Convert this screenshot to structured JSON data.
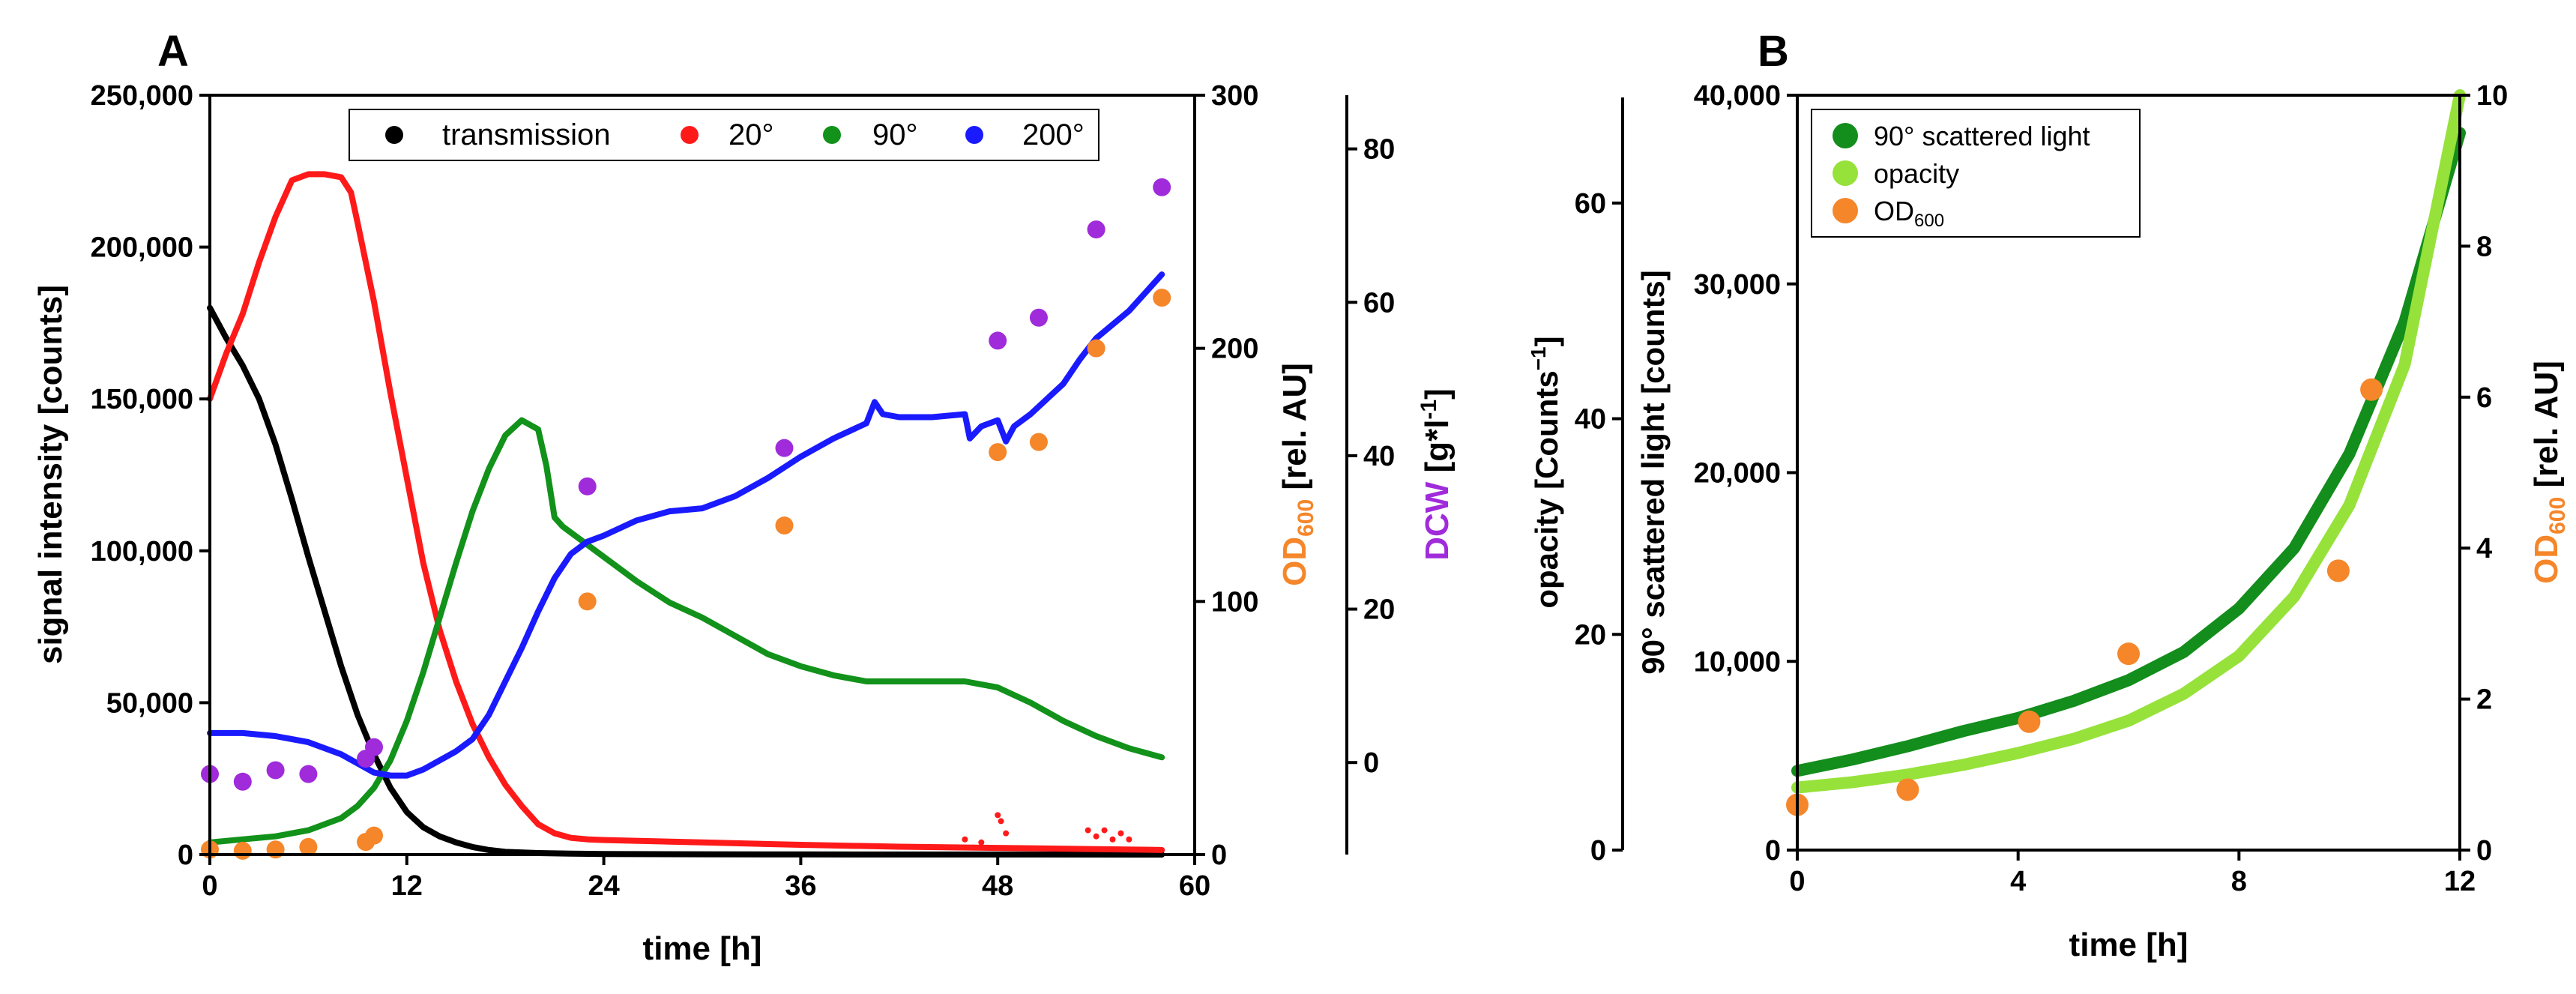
{
  "colors": {
    "black": "#000000",
    "red": "#ff1a1a",
    "green": "#12921a",
    "blue": "#1a1aff",
    "orange": "#f5862a",
    "purple": "#a02bdb",
    "darkgreen": "#138d1b",
    "lightgreen": "#96e23a"
  },
  "chart_data": [
    {
      "panel": "A",
      "type": "line",
      "xlabel": "time [h]",
      "ylabel": "signal intensity [counts]",
      "y2label_main": "OD",
      "y2label_sub": "600",
      "y2label_unit": " [rel. AU]",
      "y3label_main": "DCW",
      "y3label_unit": " [g*l",
      "y3label_sup": "-1",
      "y3label_end": "]",
      "xlim": [
        0,
        60
      ],
      "ylim": [
        0,
        250000
      ],
      "y2lim": [
        0,
        300
      ],
      "y3lim": [
        -12,
        87
      ],
      "xticks": [
        0,
        12,
        24,
        36,
        48,
        60
      ],
      "xtick_labels": [
        "0",
        "12",
        "24",
        "36",
        "48",
        "60"
      ],
      "yticks": [
        0,
        50000,
        100000,
        150000,
        200000,
        250000
      ],
      "ytick_labels": [
        "0",
        "50,000",
        "100,000",
        "150,000",
        "200,000",
        "250,000"
      ],
      "y2ticks": [
        0,
        100,
        200,
        300
      ],
      "y2tick_labels": [
        "0",
        "100",
        "200",
        "300"
      ],
      "y3ticks": [
        0,
        20,
        40,
        60,
        80
      ],
      "y3tick_labels": [
        "0",
        "20",
        "40",
        "60",
        "80"
      ],
      "legend": [
        {
          "name": "transmission",
          "color": "black"
        },
        {
          "name": "20°",
          "color": "red"
        },
        {
          "name": "90°",
          "color": "green"
        },
        {
          "name": "200°",
          "color": "blue"
        }
      ],
      "series": [
        {
          "name": "transmission",
          "color": "black",
          "x": [
            0,
            1,
            2,
            3,
            4,
            5,
            6,
            7,
            8,
            9,
            10,
            11,
            12,
            13,
            14,
            15,
            16,
            17,
            18,
            20,
            22,
            24,
            30,
            36,
            48,
            58
          ],
          "y": [
            180000,
            170000,
            161000,
            150000,
            135000,
            117000,
            98000,
            80000,
            62000,
            46000,
            33000,
            22000,
            14000,
            9000,
            6000,
            4000,
            2500,
            1500,
            900,
            500,
            300,
            200,
            100,
            50,
            20,
            0
          ]
        },
        {
          "name": "20°",
          "color": "red",
          "x": [
            0,
            1,
            2,
            3,
            4,
            5,
            6,
            7,
            8,
            8.6,
            9,
            10,
            11,
            12,
            13,
            14,
            15,
            16,
            17,
            18,
            19,
            20,
            21,
            22,
            23,
            24,
            30,
            36,
            42,
            48,
            54,
            58
          ],
          "y": [
            150000,
            165000,
            178000,
            195000,
            210000,
            222000,
            224000,
            224000,
            223000,
            218000,
            208000,
            182000,
            152000,
            124000,
            96000,
            74000,
            57000,
            43000,
            32000,
            23000,
            16000,
            10000,
            7000,
            5500,
            5000,
            4800,
            4000,
            3200,
            2600,
            2200,
            1800,
            1500
          ]
        },
        {
          "name": "90°",
          "color": "green",
          "x": [
            0,
            2,
            4,
            6,
            8,
            9,
            10,
            11,
            12,
            13,
            14,
            15,
            16,
            17,
            18,
            19,
            20,
            20.5,
            21,
            21.5,
            22,
            24,
            26,
            28,
            30,
            32,
            34,
            36,
            38,
            40,
            42,
            44,
            46,
            48,
            50,
            52,
            54,
            56,
            58
          ],
          "y": [
            4000,
            5000,
            6000,
            8000,
            12000,
            16000,
            22000,
            31000,
            44000,
            60000,
            78000,
            96000,
            113000,
            127000,
            138000,
            143000,
            140000,
            128000,
            111000,
            108000,
            106000,
            98000,
            90000,
            83000,
            78000,
            72000,
            66000,
            62000,
            59000,
            57000,
            57000,
            57000,
            57000,
            55000,
            50000,
            44000,
            39000,
            35000,
            32000
          ]
        },
        {
          "name": "200°",
          "color": "blue",
          "x": [
            0,
            2,
            4,
            6,
            8,
            9,
            10,
            11,
            12,
            13,
            14,
            15,
            16,
            17,
            18,
            19,
            20,
            21,
            22,
            23,
            24,
            26,
            28,
            30,
            32,
            34,
            36,
            38,
            40,
            40.5,
            41,
            42,
            44,
            46,
            46.3,
            47,
            48,
            48.5,
            49,
            50,
            52,
            53,
            54,
            56,
            58
          ],
          "y": [
            40000,
            40000,
            39000,
            37000,
            33000,
            30000,
            27000,
            26000,
            26000,
            28000,
            31000,
            34000,
            38000,
            46000,
            57000,
            68000,
            80000,
            91000,
            99000,
            103000,
            105000,
            110000,
            113000,
            114000,
            118000,
            124000,
            131000,
            137000,
            142000,
            149000,
            145000,
            144000,
            144000,
            145000,
            137000,
            141000,
            143000,
            136000,
            141000,
            145000,
            155000,
            163000,
            170000,
            179000,
            191000
          ]
        },
        {
          "name": "20° spikes",
          "color": "red",
          "type": "scatter",
          "x": [
            46,
            47,
            48,
            48.2,
            48.5,
            53.5,
            54,
            54.5,
            55,
            55.5,
            56
          ],
          "y": [
            5000,
            4000,
            13000,
            11000,
            7000,
            8000,
            6000,
            8000,
            5000,
            7000,
            5000
          ]
        }
      ],
      "od600_points": {
        "color": "orange",
        "axis": "y2",
        "x": [
          0,
          2,
          4,
          6,
          9.5,
          10,
          23,
          35,
          48,
          50.5,
          54,
          58
        ],
        "y": [
          2,
          1.5,
          2,
          3,
          5,
          7.5,
          100,
          130,
          159,
          163,
          200,
          220
        ]
      },
      "dcw_points": {
        "color": "purple",
        "axis": "y3",
        "x": [
          0,
          2,
          4,
          6,
          9.5,
          10,
          23,
          35,
          48,
          50.5,
          54,
          58
        ],
        "y": [
          -1.5,
          -2.5,
          -1,
          -1.5,
          0.5,
          2,
          36,
          41,
          55,
          58,
          69.5,
          75
        ]
      }
    },
    {
      "panel": "B",
      "type": "line",
      "xlabel": "time [h]",
      "ylabel": "90° scattered light [counts]",
      "yl2label_main": "opacity [Counts",
      "yl2label_sup": "−1",
      "yl2label_end": "]",
      "y2label_main": "OD",
      "y2label_sub": "600",
      "y2label_unit": " [rel. AU]",
      "xlim": [
        0,
        12
      ],
      "ylim": [
        0,
        40000
      ],
      "yl2lim": [
        0,
        70
      ],
      "y2lim": [
        0,
        10
      ],
      "xticks": [
        0,
        4,
        8,
        12
      ],
      "xtick_labels": [
        "0",
        "4",
        "8",
        "12"
      ],
      "yticks": [
        0,
        10000,
        20000,
        30000,
        40000
      ],
      "ytick_labels": [
        "0",
        "10,000",
        "20,000",
        "30,000",
        "40,000"
      ],
      "yl2ticks": [
        0,
        20,
        40,
        60
      ],
      "yl2tick_labels": [
        "0",
        "20",
        "40",
        "60"
      ],
      "y2ticks": [
        0,
        2,
        4,
        6,
        8,
        10
      ],
      "y2tick_labels": [
        "0",
        "2",
        "4",
        "6",
        "8",
        "10"
      ],
      "legend": [
        {
          "name": "90° scattered light",
          "color": "darkgreen"
        },
        {
          "name": "opacity",
          "color": "lightgreen"
        },
        {
          "name": "OD",
          "sub": "600",
          "color": "orange"
        }
      ],
      "series": [
        {
          "name": "90° scattered light",
          "color": "darkgreen",
          "axis": "y",
          "x": [
            0,
            1,
            2,
            3,
            4,
            5,
            6,
            7,
            8,
            9,
            10,
            11,
            12
          ],
          "y": [
            4200,
            4800,
            5500,
            6300,
            7000,
            7900,
            9000,
            10500,
            12800,
            16000,
            21000,
            28000,
            38000
          ]
        },
        {
          "name": "opacity",
          "color": "lightgreen",
          "axis": "yl2",
          "x": [
            0,
            1,
            2,
            3,
            4,
            5,
            6,
            7,
            8,
            9,
            10,
            11,
            12
          ],
          "y": [
            5.8,
            6.3,
            7.0,
            7.9,
            9.0,
            10.3,
            12.0,
            14.5,
            18.0,
            23.5,
            32.0,
            45.0,
            70.0
          ]
        }
      ],
      "od600_points": {
        "color": "orange",
        "axis": "y2",
        "x": [
          0,
          2,
          4.2,
          6,
          9.8,
          10.4
        ],
        "y": [
          0.6,
          0.8,
          1.7,
          2.6,
          3.7,
          6.1
        ]
      }
    }
  ],
  "labels": {
    "panel_a": "A",
    "panel_b": "B"
  }
}
